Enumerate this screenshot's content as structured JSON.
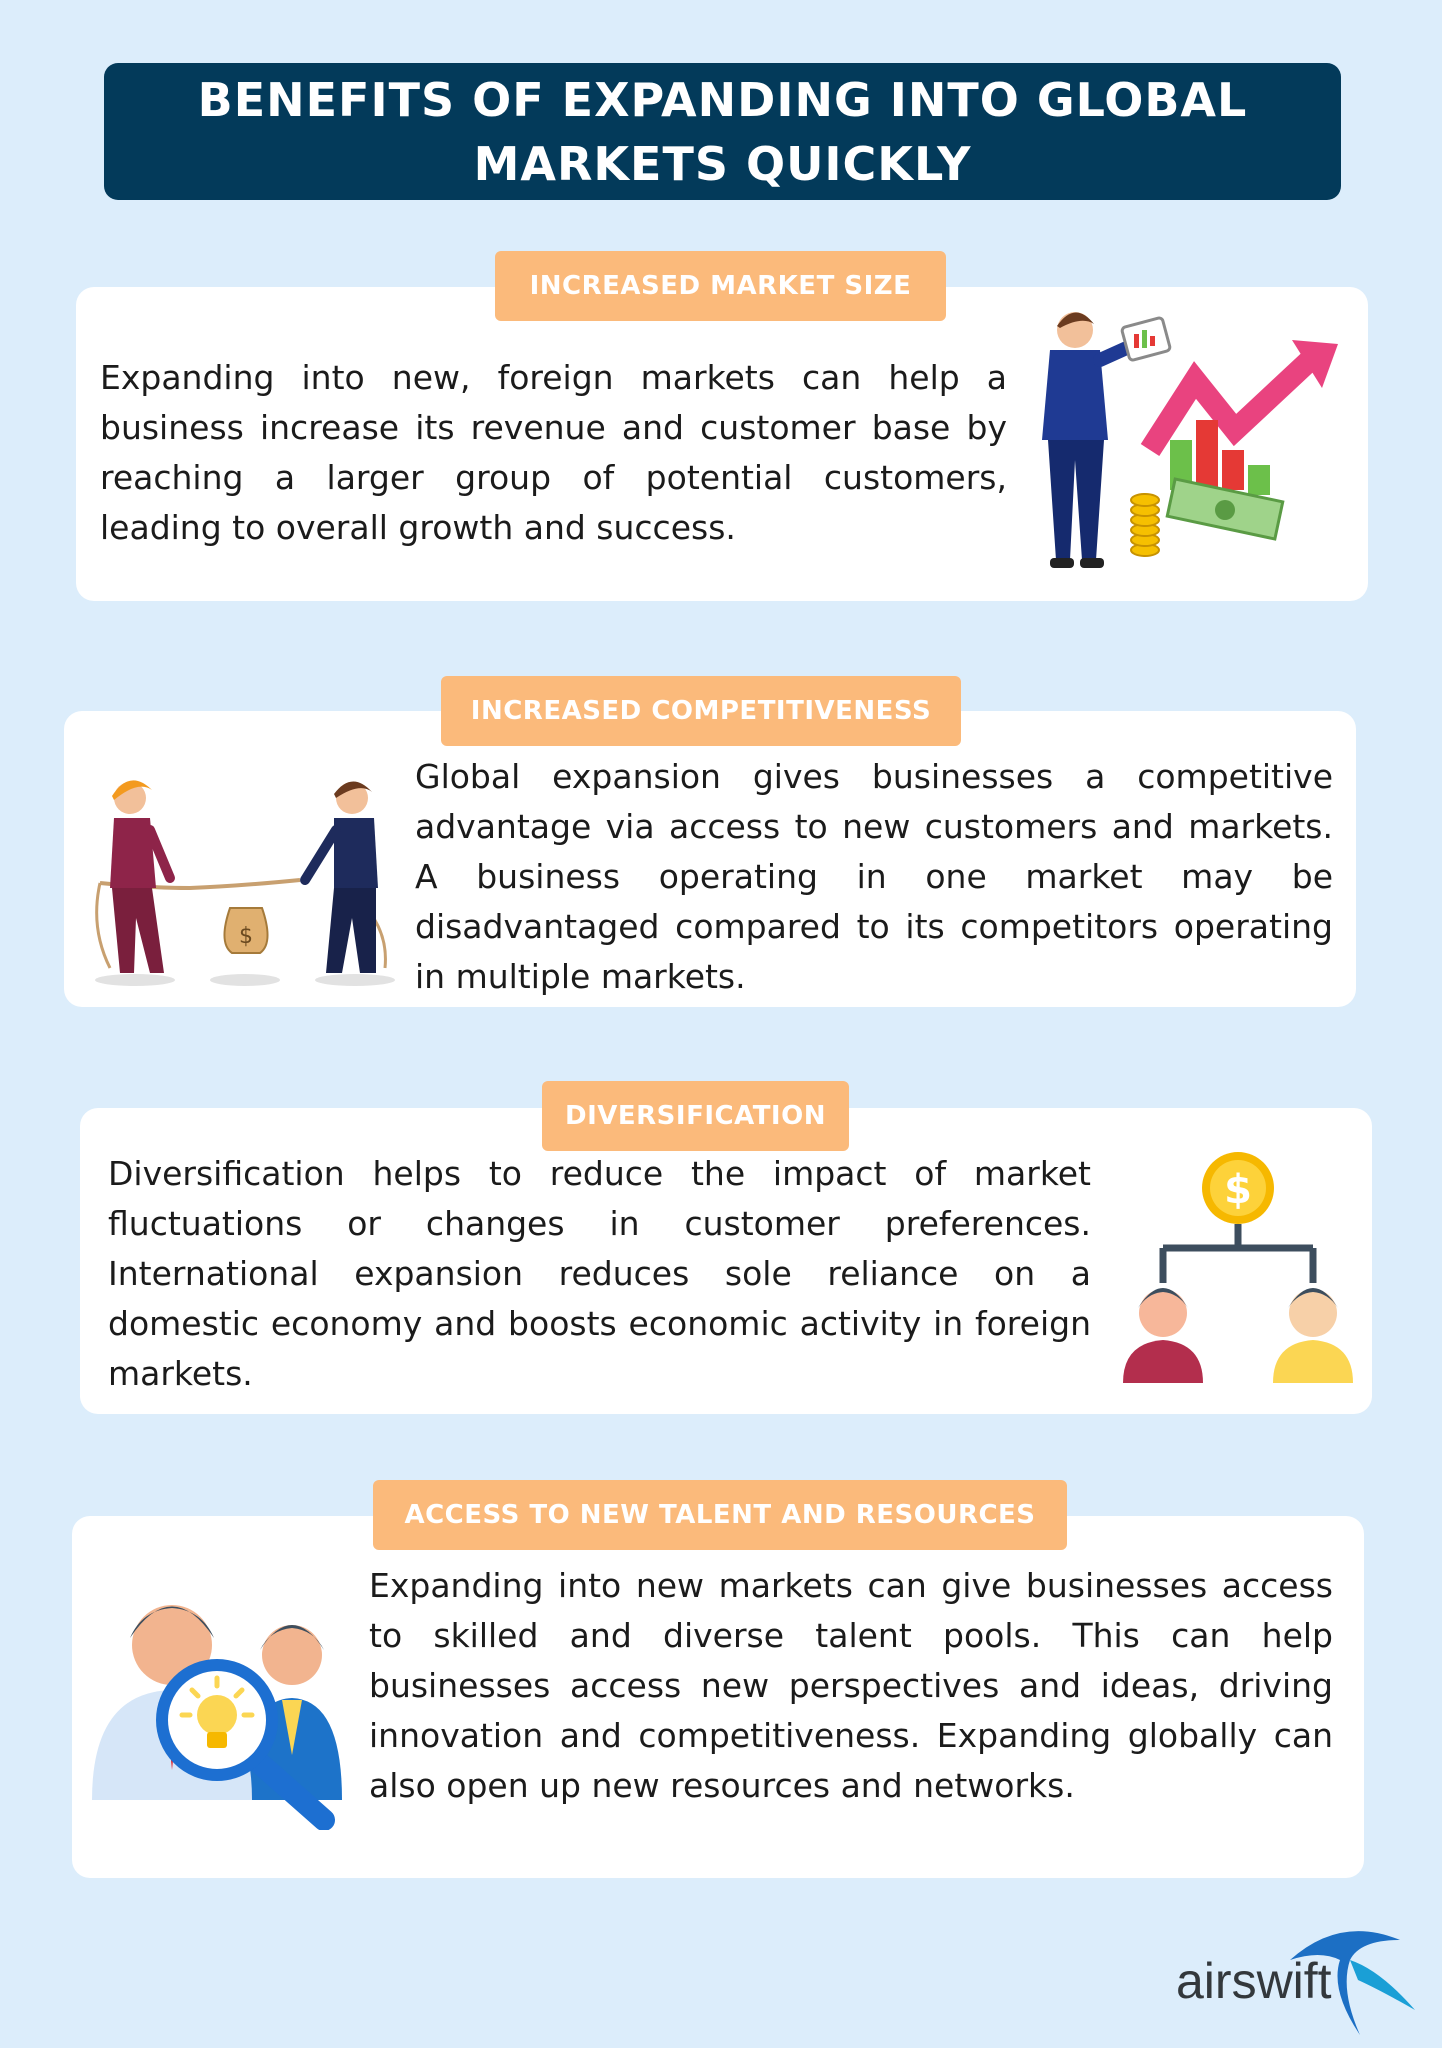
{
  "title": "BENEFITS OF EXPANDING INTO GLOBAL MARKETS QUICKLY",
  "sections": [
    {
      "heading": "INCREASED MARKET SIZE",
      "text": "Expanding into new, foreign markets can help a business increase its revenue and customer base by reaching a larger group of potential customers, leading to overall growth and success.",
      "icon": "businessman-growth-chart-icon"
    },
    {
      "heading": "INCREASED COMPETITIVENESS",
      "text": "Global expansion gives businesses a competitive advantage via access to new customers and markets. A business operating in one market may be disadvantaged compared to its competitors operating in multiple markets.",
      "icon": "tug-of-war-icon"
    },
    {
      "heading": "DIVERSIFICATION",
      "text": "Diversification helps to reduce the impact of market fluctuations or changes in customer preferences. International expansion reduces sole reliance on a domestic economy and boosts economic activity in foreign markets.",
      "icon": "dollar-hierarchy-icon"
    },
    {
      "heading": "ACCESS TO NEW TALENT AND RESOURCES",
      "text": "Expanding into new markets can give businesses access to skilled and diverse talent pools. This can help businesses access new perspectives and ideas, driving innovation and competitiveness. Expanding globally can also open up new resources and networks.",
      "icon": "talent-search-icon"
    }
  ],
  "logo": {
    "text": "airswift"
  },
  "colors": {
    "background": "#dcedfb",
    "title_banner": "#033a5a",
    "badge": "#fbba7b",
    "card": "#ffffff"
  }
}
